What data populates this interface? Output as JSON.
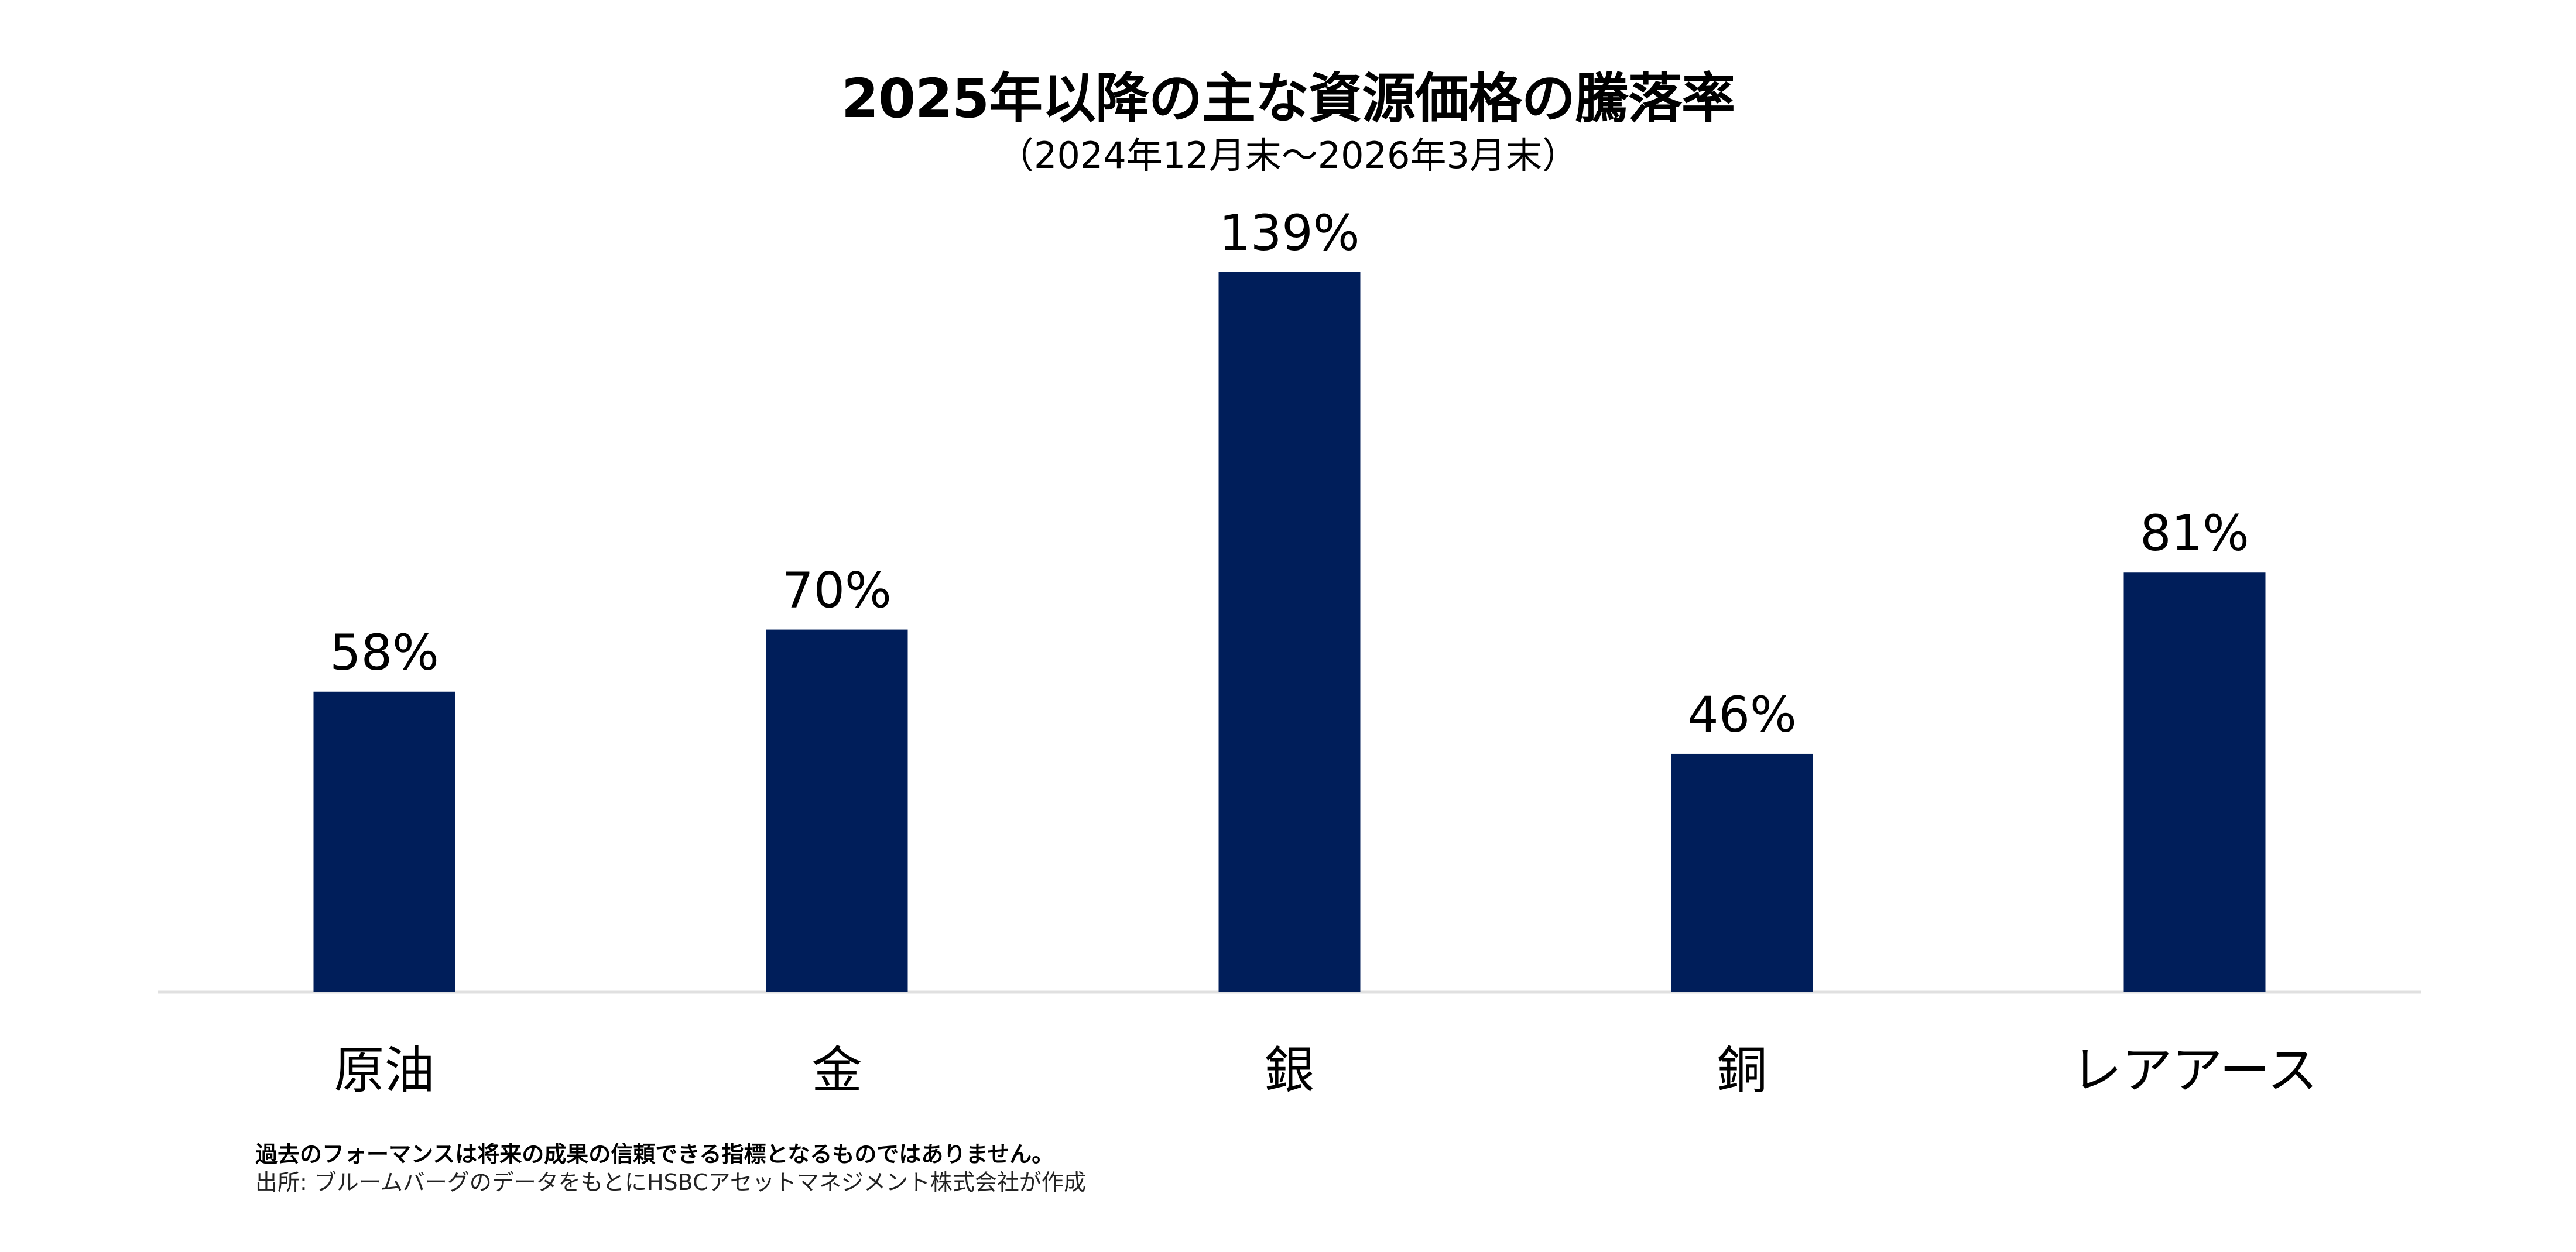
{
  "chart_data": {
    "type": "bar",
    "title": "2025年以降の主な資源価格の騰落率",
    "subtitle": "（2024年12月末～2026年3月末）",
    "categories": [
      "原油",
      "金",
      "銀",
      "銅",
      "レアアース"
    ],
    "values": [
      58,
      70,
      139,
      46,
      81
    ],
    "data_labels": [
      "58%",
      "70%",
      "139%",
      "46%",
      "81%"
    ],
    "ylim": [
      0,
      139
    ],
    "grid": false,
    "legend": "none",
    "bar_color": "#001E5A",
    "axis_color": "#E0E0E0"
  },
  "footer": {
    "disclaimer": "過去のフォーマンスは将来の成果の信頼できる指標となるものではありません。",
    "source": "出所: ブルームバーグのデータをもとにHSBCアセットマネジメント株式会社が作成"
  }
}
